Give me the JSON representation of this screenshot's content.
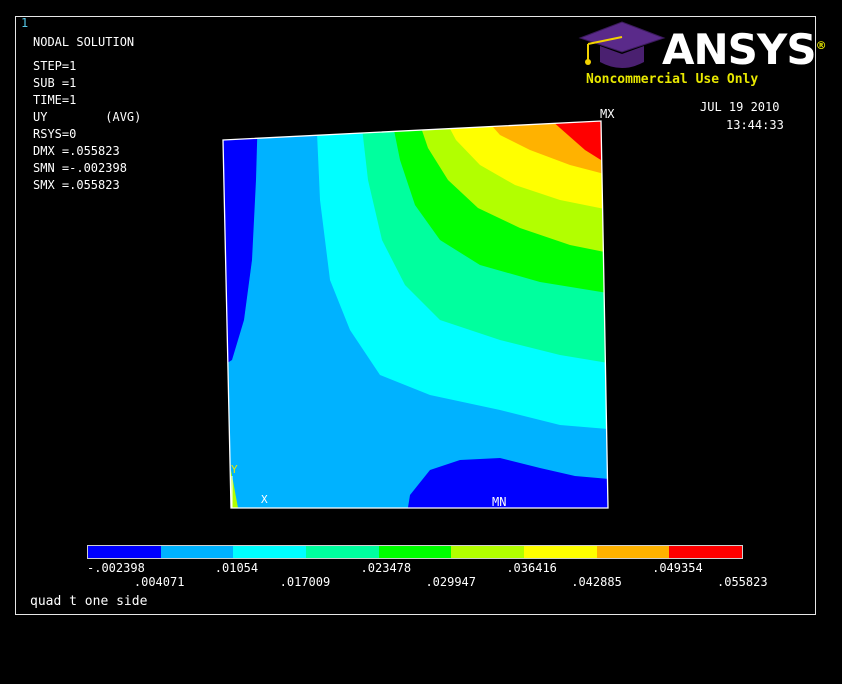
{
  "window_number": "1",
  "info": {
    "title": "NODAL SOLUTION",
    "step": "STEP=1",
    "sub": "SUB =1",
    "time": "TIME=1",
    "uy": "UY        (AVG)",
    "rsys": "RSYS=0",
    "dmx": "DMX =.055823",
    "smn": "SMN =-.002398",
    "smx": "SMX =.055823"
  },
  "logo": {
    "brand": "ANSYS",
    "registered": "®",
    "subtitle": "Noncommercial Use Only"
  },
  "timestamp": {
    "date": "JUL 19 2010",
    "time": "13:44:33"
  },
  "markers": {
    "max": "MX",
    "min": "MN",
    "axis_y": "Y",
    "axis_x": "X"
  },
  "legend": {
    "colors": [
      "#0000ff",
      "#00b2ff",
      "#00ffff",
      "#00ff9e",
      "#00ff00",
      "#b2ff00",
      "#ffff00",
      "#ffb200",
      "#ff0000"
    ],
    "labels_bottom": [
      "-.002398",
      ".01054",
      ".023478",
      ".036416",
      ".049354"
    ],
    "labels_top": [
      ".004071",
      ".017009",
      ".029947",
      ".042885",
      ".055823"
    ]
  },
  "caption": "quad t one side"
}
